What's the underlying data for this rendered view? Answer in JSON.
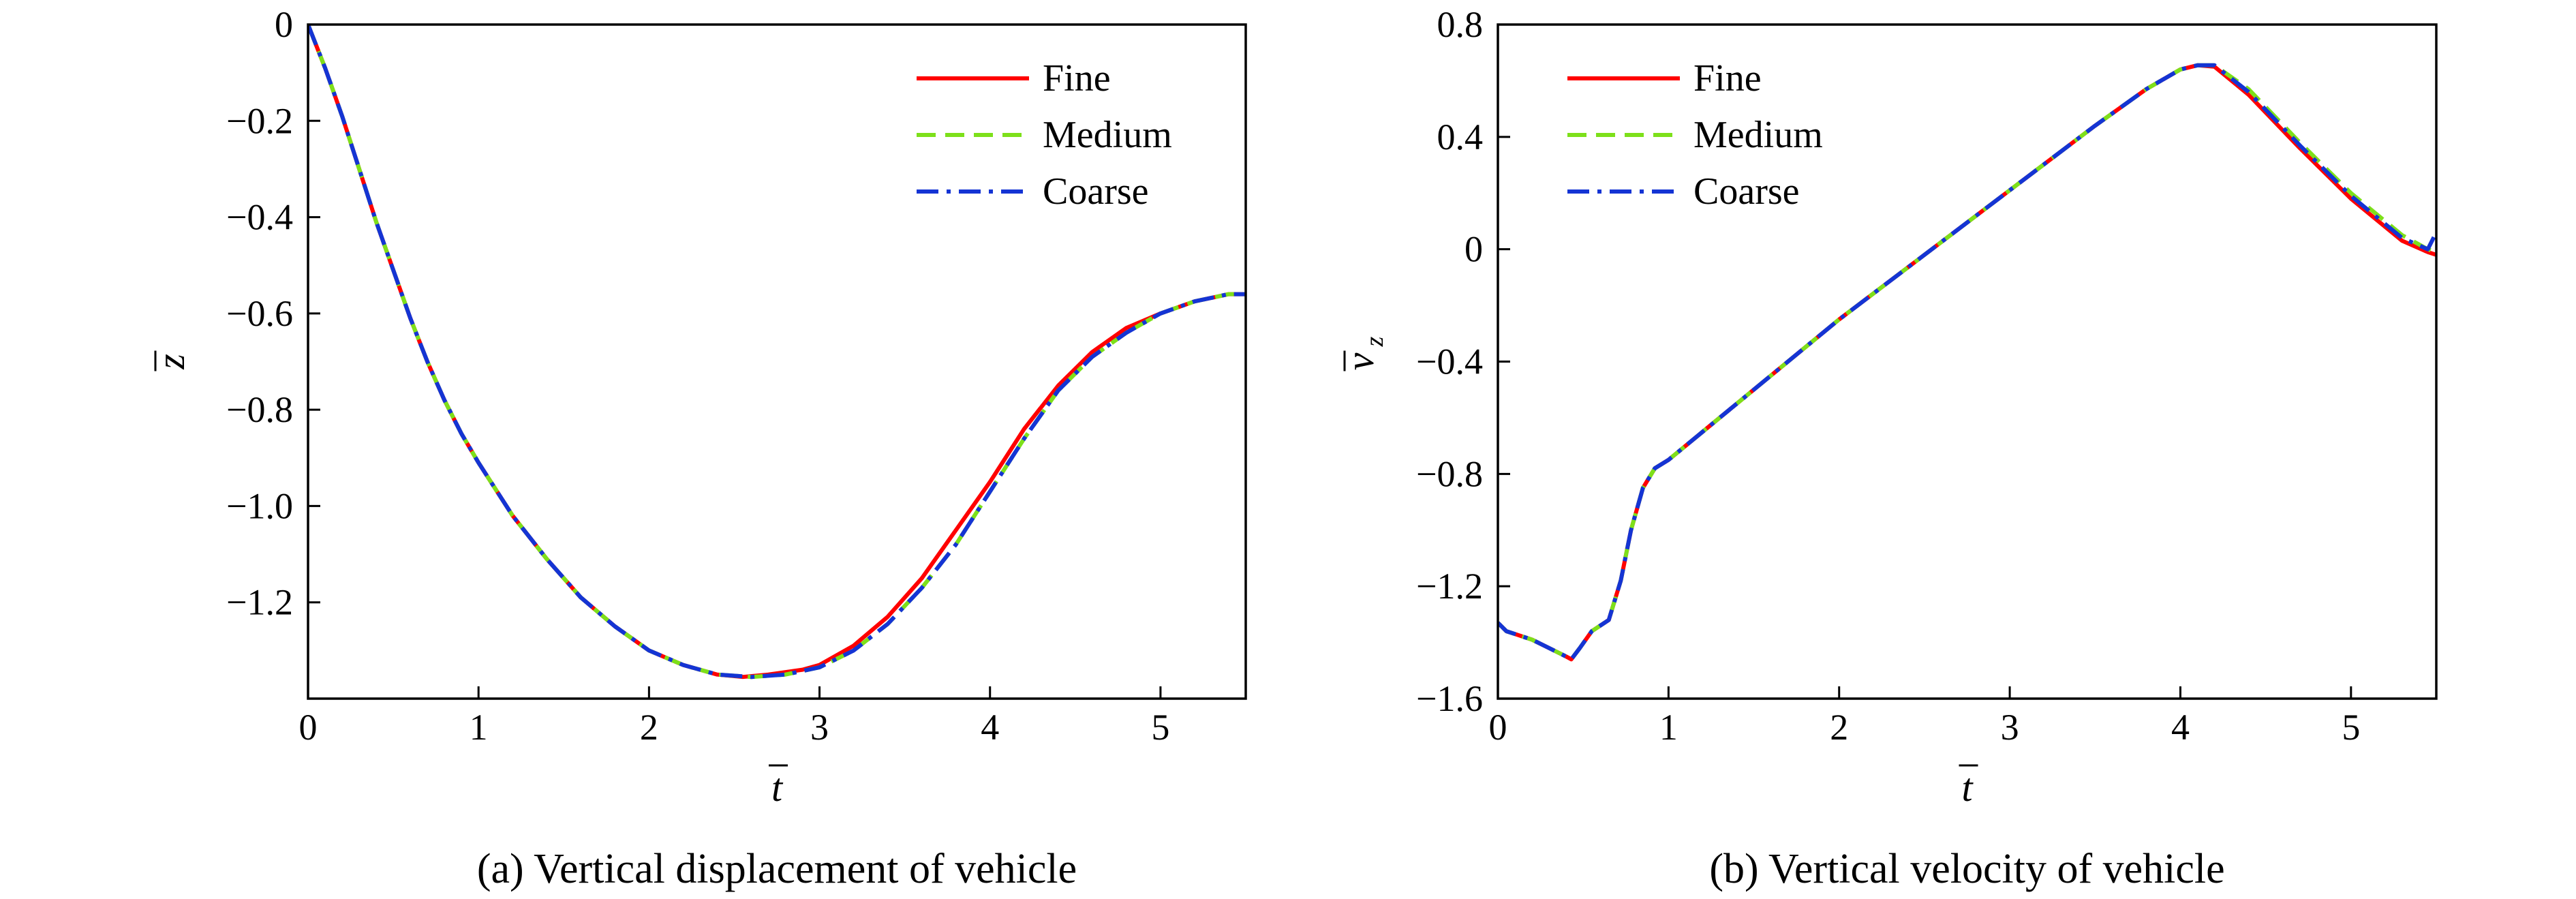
{
  "chart_data": [
    {
      "type": "line",
      "caption": "(a) Vertical displacement of vehicle",
      "xlabel": "t",
      "ylabel": "z",
      "xlim": [
        0,
        5.5
      ],
      "ylim": [
        -1.4,
        0
      ],
      "xticks": [
        0,
        1,
        2,
        3,
        4,
        5
      ],
      "xtick_labels": [
        "0",
        "1",
        "2",
        "3",
        "4",
        "5"
      ],
      "yticks": [
        0,
        -0.2,
        -0.4,
        -0.6,
        -0.8,
        -1.0,
        -1.2
      ],
      "ytick_labels": [
        "0",
        "−0.2",
        "−0.4",
        "−0.6",
        "−0.8",
        "−1.0",
        "−1.2"
      ],
      "legend_position": "top-right",
      "grid": false,
      "series": [
        {
          "name": "Fine",
          "color": "#ff0000",
          "style": "solid",
          "x": [
            0,
            0.1,
            0.2,
            0.3,
            0.4,
            0.5,
            0.6,
            0.7,
            0.8,
            0.9,
            1.0,
            1.2,
            1.4,
            1.6,
            1.8,
            2.0,
            2.2,
            2.4,
            2.55,
            2.7,
            2.9,
            3.0,
            3.2,
            3.4,
            3.6,
            3.8,
            4.0,
            4.2,
            4.4,
            4.6,
            4.8,
            5.0,
            5.2,
            5.4,
            5.5
          ],
          "y": [
            0,
            -0.09,
            -0.19,
            -0.3,
            -0.41,
            -0.51,
            -0.61,
            -0.7,
            -0.78,
            -0.85,
            -0.91,
            -1.02,
            -1.11,
            -1.19,
            -1.25,
            -1.3,
            -1.33,
            -1.35,
            -1.355,
            -1.35,
            -1.34,
            -1.33,
            -1.29,
            -1.23,
            -1.15,
            -1.05,
            -0.95,
            -0.84,
            -0.75,
            -0.68,
            -0.63,
            -0.6,
            -0.575,
            -0.56,
            -0.56
          ]
        },
        {
          "name": "Medium",
          "color": "#7de01a",
          "style": "dashed",
          "x": [
            0,
            0.1,
            0.2,
            0.3,
            0.4,
            0.5,
            0.6,
            0.7,
            0.8,
            0.9,
            1.0,
            1.2,
            1.4,
            1.6,
            1.8,
            2.0,
            2.2,
            2.4,
            2.6,
            2.8,
            3.0,
            3.2,
            3.4,
            3.6,
            3.8,
            4.0,
            4.2,
            4.4,
            4.6,
            4.8,
            5.0,
            5.2,
            5.4,
            5.5
          ],
          "y": [
            0,
            -0.09,
            -0.19,
            -0.3,
            -0.41,
            -0.51,
            -0.61,
            -0.7,
            -0.78,
            -0.85,
            -0.91,
            -1.02,
            -1.11,
            -1.19,
            -1.25,
            -1.3,
            -1.33,
            -1.35,
            -1.355,
            -1.35,
            -1.335,
            -1.3,
            -1.245,
            -1.17,
            -1.08,
            -0.97,
            -0.86,
            -0.76,
            -0.69,
            -0.64,
            -0.6,
            -0.575,
            -0.56,
            -0.56
          ]
        },
        {
          "name": "Coarse",
          "color": "#1434d4",
          "style": "dashdot",
          "x": [
            0,
            0.1,
            0.2,
            0.3,
            0.4,
            0.5,
            0.6,
            0.7,
            0.8,
            0.9,
            1.0,
            1.2,
            1.4,
            1.6,
            1.8,
            2.0,
            2.2,
            2.4,
            2.6,
            2.8,
            3.0,
            3.2,
            3.4,
            3.6,
            3.8,
            4.0,
            4.2,
            4.4,
            4.6,
            4.8,
            5.0,
            5.2,
            5.4,
            5.5
          ],
          "y": [
            0,
            -0.09,
            -0.19,
            -0.3,
            -0.41,
            -0.51,
            -0.61,
            -0.7,
            -0.78,
            -0.85,
            -0.91,
            -1.02,
            -1.11,
            -1.19,
            -1.25,
            -1.3,
            -1.33,
            -1.35,
            -1.355,
            -1.35,
            -1.335,
            -1.3,
            -1.245,
            -1.17,
            -1.08,
            -0.97,
            -0.86,
            -0.76,
            -0.69,
            -0.64,
            -0.6,
            -0.575,
            -0.56,
            -0.56
          ]
        }
      ]
    },
    {
      "type": "line",
      "caption": "(b) Vertical velocity of vehicle",
      "xlabel": "t",
      "ylabel": "v",
      "ylabel_sub": "z",
      "xlim": [
        0,
        5.5
      ],
      "ylim": [
        -1.6,
        0.8
      ],
      "xticks": [
        0,
        1,
        2,
        3,
        4,
        5
      ],
      "xtick_labels": [
        "0",
        "1",
        "2",
        "3",
        "4",
        "5"
      ],
      "yticks": [
        0.8,
        0.4,
        0,
        -0.4,
        -0.8,
        -1.2,
        -1.6
      ],
      "ytick_labels": [
        "0.8",
        "0.4",
        "0",
        "−0.4",
        "−0.8",
        "−1.2",
        "−1.6"
      ],
      "legend_position": "top-left",
      "grid": false,
      "series": [
        {
          "name": "Fine",
          "color": "#ff0000",
          "style": "solid",
          "x": [
            0,
            0.05,
            0.1,
            0.2,
            0.3,
            0.4,
            0.43,
            0.48,
            0.55,
            0.65,
            0.72,
            0.78,
            0.85,
            0.92,
            1.0,
            1.2,
            1.5,
            2.0,
            2.5,
            3.0,
            3.5,
            3.8,
            4.0,
            4.1,
            4.2,
            4.4,
            4.7,
            5.0,
            5.3,
            5.45,
            5.5
          ],
          "y": [
            -1.33,
            -1.36,
            -1.37,
            -1.39,
            -1.42,
            -1.45,
            -1.46,
            -1.42,
            -1.36,
            -1.32,
            -1.18,
            -1.0,
            -0.85,
            -0.78,
            -0.75,
            -0.65,
            -0.5,
            -0.25,
            -0.02,
            0.21,
            0.44,
            0.57,
            0.64,
            0.655,
            0.65,
            0.55,
            0.36,
            0.18,
            0.03,
            -0.01,
            -0.02
          ]
        },
        {
          "name": "Medium",
          "color": "#7de01a",
          "style": "dashed",
          "x": [
            0,
            0.05,
            0.1,
            0.2,
            0.3,
            0.4,
            0.43,
            0.48,
            0.55,
            0.65,
            0.72,
            0.78,
            0.85,
            0.92,
            1.0,
            1.2,
            1.5,
            2.0,
            2.5,
            3.0,
            3.5,
            3.8,
            4.0,
            4.1,
            4.2,
            4.4,
            4.7,
            5.0,
            5.3,
            5.45,
            5.5
          ],
          "y": [
            -1.33,
            -1.36,
            -1.37,
            -1.39,
            -1.42,
            -1.45,
            -1.46,
            -1.42,
            -1.36,
            -1.32,
            -1.18,
            -1.0,
            -0.85,
            -0.78,
            -0.75,
            -0.65,
            -0.5,
            -0.25,
            -0.02,
            0.21,
            0.44,
            0.57,
            0.64,
            0.655,
            0.655,
            0.57,
            0.38,
            0.2,
            0.05,
            0.0,
            -0.01
          ]
        },
        {
          "name": "Coarse",
          "color": "#1434d4",
          "style": "dashdot",
          "x": [
            0,
            0.05,
            0.1,
            0.2,
            0.3,
            0.4,
            0.43,
            0.48,
            0.55,
            0.65,
            0.72,
            0.78,
            0.85,
            0.92,
            1.0,
            1.2,
            1.5,
            2.0,
            2.5,
            3.0,
            3.5,
            3.8,
            4.0,
            4.1,
            4.2,
            4.4,
            4.7,
            5.0,
            5.3,
            5.45,
            5.5
          ],
          "y": [
            -1.33,
            -1.36,
            -1.37,
            -1.39,
            -1.42,
            -1.45,
            -1.46,
            -1.42,
            -1.36,
            -1.32,
            -1.18,
            -1.0,
            -0.85,
            -0.78,
            -0.75,
            -0.65,
            -0.5,
            -0.25,
            -0.02,
            0.21,
            0.44,
            0.57,
            0.64,
            0.655,
            0.655,
            0.56,
            0.37,
            0.19,
            0.04,
            0.0,
            0.06
          ]
        }
      ]
    }
  ]
}
